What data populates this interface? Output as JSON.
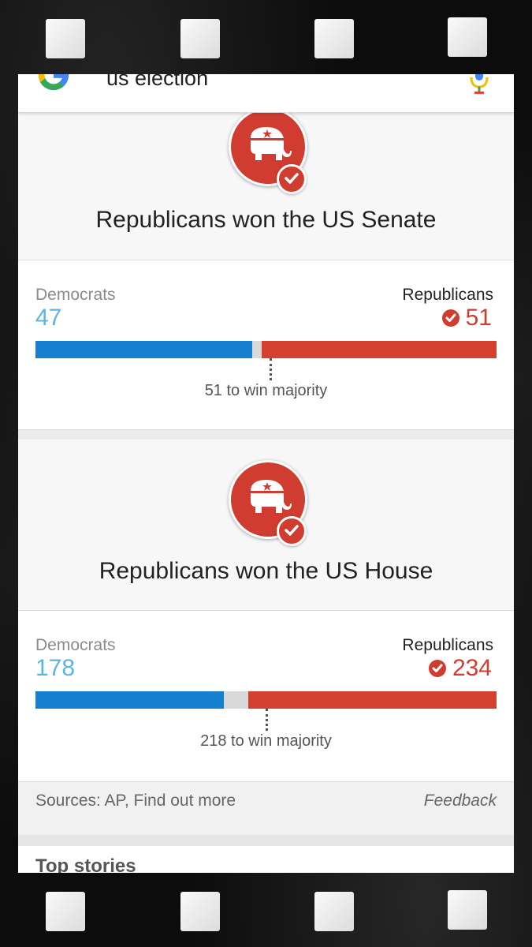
{
  "search": {
    "query": "us election"
  },
  "senate": {
    "headline": "Republicans won the US Senate",
    "dem_label": "Democrats",
    "dem_count": "47",
    "rep_label": "Republicans",
    "rep_count": "51",
    "majority_text": "51 to win majority",
    "dem_fraction": 0.47,
    "rep_fraction": 0.51,
    "majority_fraction": 0.51
  },
  "house": {
    "headline": "Republicans won the US House",
    "dem_label": "Democrats",
    "dem_count": "178",
    "rep_label": "Republicans",
    "rep_count": "234",
    "majority_text": "218 to win majority",
    "dem_fraction": 0.4092,
    "rep_fraction": 0.5379,
    "majority_fraction": 0.5011
  },
  "footer": {
    "sources": "Sources: AP, Find out more",
    "feedback": "Feedback"
  },
  "top_stories": "Top stories",
  "colors": {
    "democrat_bar": "#1580cf",
    "democrat_text": "#5ab4e6",
    "republican": "#d13c30"
  },
  "icons": {
    "logo": "google-g-icon",
    "mic": "microphone-icon",
    "emblem": "republican-elephant-icon",
    "winner": "checkmark-icon"
  }
}
